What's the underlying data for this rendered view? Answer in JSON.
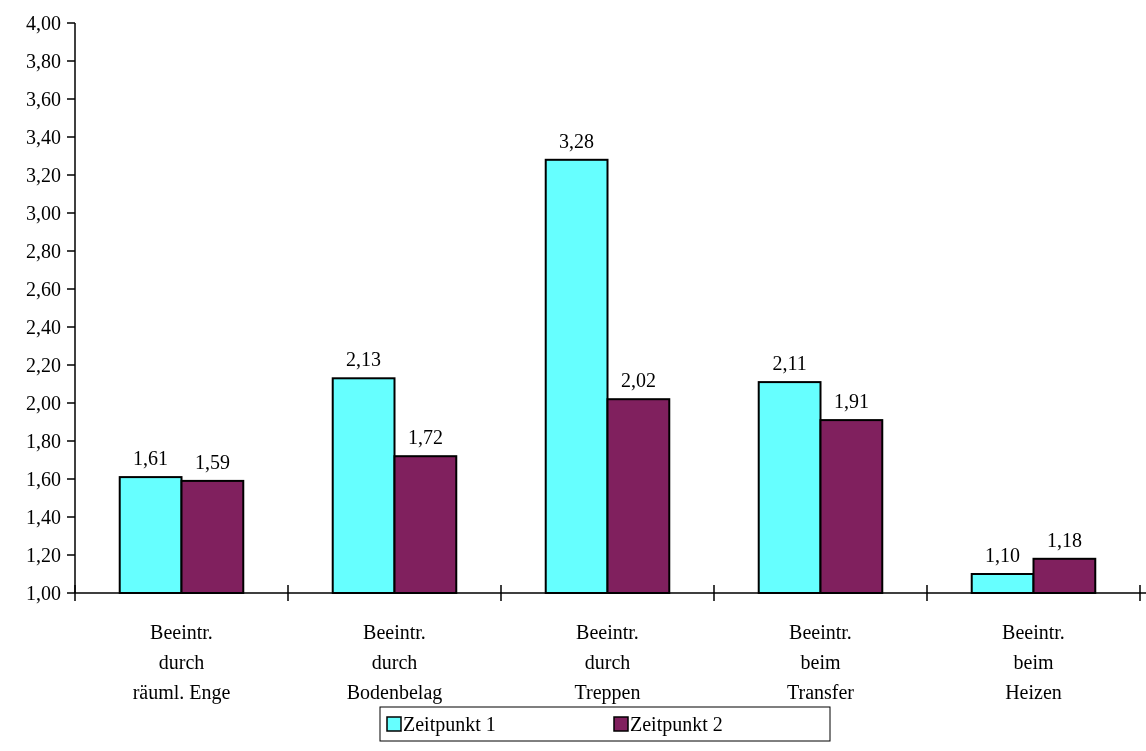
{
  "chart_data": {
    "type": "bar",
    "categories": [
      "Beeintr.\ndurch\nräuml. Enge",
      "Beeintr.\ndurch\nBodenbelag",
      "Beeintr.\ndurch\nTreppen",
      "Beeintr.\nbeim\nTransfer",
      "Beeintr.\nbeim\nHeizen"
    ],
    "series": [
      {
        "name": "Zeitpunkt 1",
        "color": "#66ffff",
        "values": [
          1.61,
          2.13,
          3.28,
          2.11,
          1.1
        ],
        "value_labels": [
          "1,61",
          "2,13",
          "3,28",
          "2,11",
          "1,10"
        ]
      },
      {
        "name": "Zeitpunkt 2",
        "color": "#80205e",
        "values": [
          1.59,
          1.72,
          2.02,
          1.91,
          1.18
        ],
        "value_labels": [
          "1,59",
          "1,72",
          "2,02",
          "1,91",
          "1,18"
        ]
      }
    ],
    "ylim": [
      1,
      4
    ],
    "yticks": [
      {
        "value": 1,
        "label": "1,00"
      },
      {
        "value": 1.2,
        "label": "1,20"
      },
      {
        "value": 1.4,
        "label": "1,40"
      },
      {
        "value": 1.6,
        "label": "1,60"
      },
      {
        "value": 1.8,
        "label": "1,80"
      },
      {
        "value": 2,
        "label": "2,00"
      },
      {
        "value": 2.2,
        "label": "2,20"
      },
      {
        "value": 2.4,
        "label": "2,40"
      },
      {
        "value": 2.6,
        "label": "2,60"
      },
      {
        "value": 2.8,
        "label": "2,80"
      },
      {
        "value": 3,
        "label": "3,00"
      },
      {
        "value": 3.2,
        "label": "3,20"
      },
      {
        "value": 3.4,
        "label": "3,40"
      },
      {
        "value": 3.6,
        "label": "3,60"
      },
      {
        "value": 3.8,
        "label": "3,80"
      },
      {
        "value": 4,
        "label": "4,00"
      }
    ],
    "grid": false,
    "legend": "bottom"
  }
}
